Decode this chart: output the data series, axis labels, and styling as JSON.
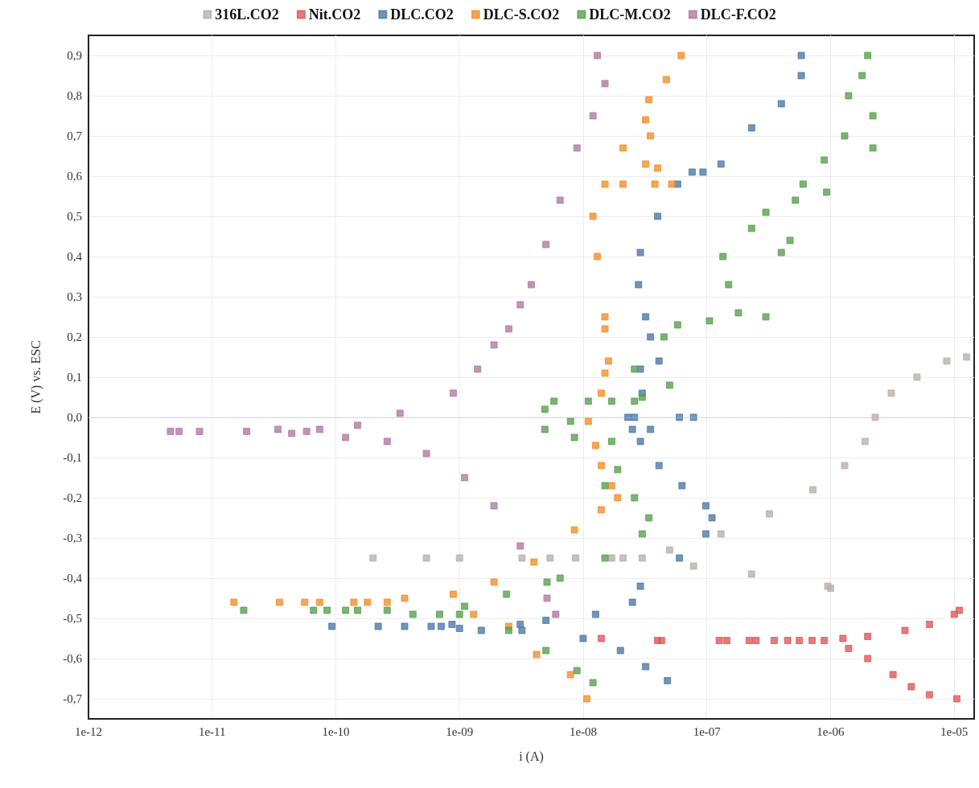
{
  "chart_data": {
    "type": "scatter",
    "xlabel": "i (A)",
    "ylabel": "E (V) vs. ESC",
    "log": "x",
    "grid": true,
    "legend": "top",
    "marker": "square",
    "xlim": [
      1e-12,
      1.45e-05
    ],
    "xticks": [
      {
        "value": 1e-12,
        "label": "1e-12"
      },
      {
        "value": 1e-11,
        "label": "1e-11"
      },
      {
        "value": 1e-10,
        "label": "1e-10"
      },
      {
        "value": 1e-09,
        "label": "1e-09"
      },
      {
        "value": 1e-08,
        "label": "1e-08"
      },
      {
        "value": 1e-07,
        "label": "1e-07"
      },
      {
        "value": 1e-06,
        "label": "1e-06"
      },
      {
        "value": 1e-05,
        "label": "1e-05"
      }
    ],
    "ylim": [
      -0.75,
      0.95
    ],
    "yticks": [
      {
        "value": -0.7,
        "label": "-0,7"
      },
      {
        "value": -0.6,
        "label": "-0,6"
      },
      {
        "value": -0.5,
        "label": "-0,5"
      },
      {
        "value": -0.4,
        "label": "-0,4"
      },
      {
        "value": -0.3,
        "label": "-0,3"
      },
      {
        "value": -0.2,
        "label": "-0,2"
      },
      {
        "value": -0.1,
        "label": "-0,1"
      },
      {
        "value": 0,
        "label": "0,0"
      },
      {
        "value": 0.1,
        "label": "0,1"
      },
      {
        "value": 0.2,
        "label": "0,2"
      },
      {
        "value": 0.3,
        "label": "0,3"
      },
      {
        "value": 0.4,
        "label": "0,4"
      },
      {
        "value": 0.5,
        "label": "0,5"
      },
      {
        "value": 0.6,
        "label": "0,6"
      },
      {
        "value": 0.7,
        "label": "0,7"
      },
      {
        "value": 0.8,
        "label": "0,8"
      },
      {
        "value": 0.9,
        "label": "0,9"
      }
    ],
    "ref_lines": [
      {
        "axis": "y",
        "value": 0,
        "label": null,
        "color": "#bfbfbf",
        "line_style": "dotted"
      }
    ],
    "series": [
      {
        "name": "316L.CO2",
        "color": "#bab0ac",
        "x": [
          2e-10,
          5.4e-10,
          1e-09,
          3.2e-09,
          5.4e-09,
          8.7e-09,
          1.7e-08,
          2.1e-08,
          3e-08,
          5e-08,
          1.3e-07,
          3.2e-07,
          7.2e-07,
          1.3e-06,
          1.9e-06,
          2.3e-06,
          3.1e-06,
          5e-06,
          8.7e-06,
          1.26e-05,
          7.8e-08,
          2.3e-07,
          9.5e-07,
          1e-06
        ],
        "values": [
          -0.35,
          -0.35,
          -0.35,
          -0.35,
          -0.35,
          -0.35,
          -0.35,
          -0.35,
          -0.35,
          -0.33,
          -0.29,
          -0.24,
          -0.18,
          -0.12,
          -0.06,
          0.0,
          0.06,
          0.1,
          0.14,
          0.15,
          -0.37,
          -0.39,
          -0.42,
          -0.425
        ]
      },
      {
        "name": "Nit.CO2",
        "color": "#e15759",
        "x": [
          1.4e-08,
          4e-08,
          4.3e-08,
          1.26e-07,
          1.45e-07,
          2.2e-07,
          2.5e-07,
          3.5e-07,
          4.5e-07,
          5.6e-07,
          7.1e-07,
          8.9e-07,
          1.26e-06,
          2e-06,
          4e-06,
          6.3e-06,
          1e-05,
          1.1e-05,
          1.4e-06,
          2e-06,
          3.2e-06,
          4.5e-06,
          6.3e-06,
          1.05e-05
        ],
        "values": [
          -0.55,
          -0.555,
          -0.555,
          -0.555,
          -0.555,
          -0.555,
          -0.555,
          -0.555,
          -0.555,
          -0.555,
          -0.555,
          -0.555,
          -0.55,
          -0.545,
          -0.53,
          -0.515,
          -0.49,
          -0.48,
          -0.575,
          -0.6,
          -0.64,
          -0.67,
          -0.69,
          -0.7
        ]
      },
      {
        "name": "DLC.CO2",
        "color": "#4e79a7",
        "x": [
          9.3e-11,
          2.2e-10,
          3.6e-10,
          5.9e-10,
          7.1e-10,
          8.7e-10,
          1e-09,
          1.5e-09,
          3.1e-09,
          5e-09,
          1.26e-08,
          2.5e-08,
          2.9e-08,
          6e-08,
          9.8e-08,
          1.1e-07,
          9.8e-08,
          6.3e-08,
          4.1e-08,
          2.9e-08,
          2.5e-08,
          3.5e-08,
          2.6e-08,
          6e-08,
          7.8e-08,
          2.3e-08,
          3e-08,
          2.9e-08,
          4.1e-08,
          3.5e-08,
          3.2e-08,
          2.8e-08,
          2.9e-08,
          4e-08,
          5.8e-08,
          7.6e-08,
          9.3e-08,
          1.3e-07,
          2.3e-07,
          4e-07,
          5.8e-07,
          5.8e-07,
          3.2e-09,
          1e-08,
          2e-08,
          3.2e-08,
          4.8e-08
        ],
        "values": [
          -0.52,
          -0.52,
          -0.52,
          -0.52,
          -0.52,
          -0.515,
          -0.525,
          -0.53,
          -0.515,
          -0.505,
          -0.49,
          -0.46,
          -0.42,
          -0.35,
          -0.29,
          -0.25,
          -0.22,
          -0.17,
          -0.12,
          -0.06,
          -0.03,
          -0.03,
          0.0,
          0.0,
          0.0,
          0.0,
          0.06,
          0.12,
          0.14,
          0.2,
          0.25,
          0.33,
          0.41,
          0.5,
          0.58,
          0.61,
          0.61,
          0.63,
          0.72,
          0.78,
          0.85,
          0.9,
          -0.53,
          -0.55,
          -0.58,
          -0.62,
          -0.655
        ]
      },
      {
        "name": "DLC-S.CO2",
        "color": "#f28e2b",
        "x": [
          1.5e-11,
          3.5e-11,
          5.6e-11,
          7.4e-11,
          1.4e-10,
          1.8e-10,
          2.6e-10,
          3.6e-10,
          8.9e-10,
          1.9e-09,
          4e-09,
          8.5e-09,
          1.4e-08,
          1.9e-08,
          1.7e-08,
          1.4e-08,
          1.26e-08,
          1.1e-08,
          1.4e-08,
          1.5e-08,
          1.6e-08,
          1.5e-08,
          1.5e-08,
          1.3e-08,
          1.2e-08,
          1.5e-08,
          2.1e-08,
          5.2e-08,
          3.8e-08,
          4e-08,
          3.2e-08,
          2.1e-08,
          3.5e-08,
          3.2e-08,
          3.4e-08,
          4.7e-08,
          6.2e-08,
          1.3e-09,
          2.5e-09,
          4.2e-09,
          7.9e-09,
          1.07e-08
        ],
        "values": [
          -0.46,
          -0.46,
          -0.46,
          -0.46,
          -0.46,
          -0.46,
          -0.46,
          -0.45,
          -0.44,
          -0.41,
          -0.36,
          -0.28,
          -0.23,
          -0.2,
          -0.17,
          -0.12,
          -0.07,
          -0.01,
          0.06,
          0.11,
          0.14,
          0.22,
          0.25,
          0.4,
          0.5,
          0.58,
          0.58,
          0.58,
          0.58,
          0.62,
          0.63,
          0.67,
          0.7,
          0.74,
          0.79,
          0.84,
          0.9,
          -0.49,
          -0.52,
          -0.59,
          -0.64,
          -0.7
        ]
      },
      {
        "name": "DLC-M.CO2",
        "color": "#59a14f",
        "x": [
          1.8e-11,
          6.6e-11,
          8.5e-11,
          1.2e-10,
          1.5e-10,
          2.6e-10,
          4.2e-10,
          6.9e-10,
          1.1e-09,
          2.4e-09,
          5.1e-09,
          6.5e-09,
          1.5e-08,
          3e-08,
          3.4e-08,
          2.6e-08,
          1.5e-08,
          1.9e-08,
          1.7e-08,
          8.5e-09,
          4.9e-09,
          7.9e-09,
          4.9e-09,
          5.8e-09,
          1.1e-08,
          1.7e-08,
          2.6e-08,
          3e-08,
          5e-08,
          2.6e-08,
          4.5e-08,
          5.8e-08,
          1.05e-07,
          1.8e-07,
          3e-07,
          1.5e-07,
          1.35e-07,
          4e-07,
          4.7e-07,
          2.3e-07,
          3e-07,
          5.2e-07,
          9.3e-07,
          6e-07,
          8.9e-07,
          1.3e-06,
          2.2e-06,
          2.2e-06,
          1.4e-06,
          1.8e-06,
          2e-06,
          1e-09,
          2.5e-09,
          5e-09,
          8.9e-09,
          1.2e-08
        ],
        "values": [
          -0.48,
          -0.48,
          -0.48,
          -0.48,
          -0.48,
          -0.48,
          -0.49,
          -0.49,
          -0.47,
          -0.44,
          -0.41,
          -0.4,
          -0.35,
          -0.29,
          -0.25,
          -0.2,
          -0.17,
          -0.13,
          -0.06,
          -0.05,
          -0.03,
          -0.01,
          0.02,
          0.04,
          0.04,
          0.04,
          0.04,
          0.05,
          0.08,
          0.12,
          0.2,
          0.23,
          0.24,
          0.26,
          0.25,
          0.33,
          0.4,
          0.41,
          0.44,
          0.47,
          0.51,
          0.54,
          0.56,
          0.58,
          0.64,
          0.7,
          0.67,
          0.75,
          0.8,
          0.85,
          0.9,
          -0.49,
          -0.53,
          -0.58,
          -0.63,
          -0.66
        ]
      },
      {
        "name": "DLC-F.CO2",
        "color": "#b07aa1",
        "x": [
          4.6e-12,
          5.4e-12,
          7.9e-12,
          1.9e-11,
          3.4e-11,
          4.4e-11,
          5.8e-11,
          7.4e-11,
          1.5e-10,
          3.3e-10,
          8.9e-10,
          1.4e-09,
          1.9e-09,
          2.5e-09,
          3.1e-09,
          3.8e-09,
          5e-09,
          6.5e-09,
          8.9e-09,
          1.2e-08,
          1.5e-08,
          1.3e-08,
          1.2e-10,
          2.6e-10,
          5.4e-10,
          1.1e-09,
          1.9e-09,
          3.1e-09,
          5.1e-09,
          6e-09
        ],
        "values": [
          -0.035,
          -0.035,
          -0.035,
          -0.035,
          -0.03,
          -0.04,
          -0.035,
          -0.03,
          -0.02,
          0.01,
          0.06,
          0.12,
          0.18,
          0.22,
          0.28,
          0.33,
          0.43,
          0.54,
          0.67,
          0.75,
          0.83,
          0.9,
          -0.05,
          -0.06,
          -0.09,
          -0.15,
          -0.22,
          -0.32,
          -0.45,
          -0.49
        ]
      }
    ]
  }
}
